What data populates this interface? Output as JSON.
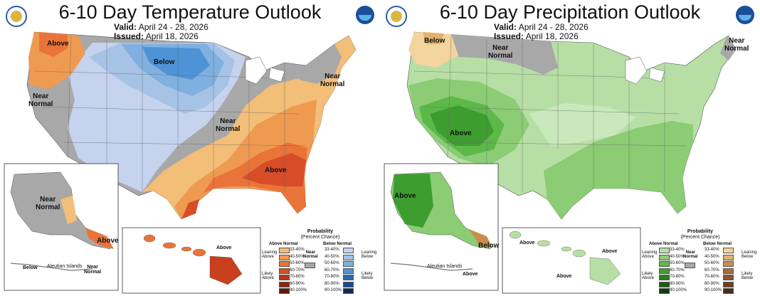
{
  "temperature": {
    "title": "6-10 Day Temperature Outlook",
    "valid_label": "Valid:",
    "valid_value": "April 24 - 28, 2026",
    "issued_label": "Issued:",
    "issued_value": "April 18, 2026",
    "labels": {
      "above_nw": "Above",
      "below_n": "Below",
      "near_ne_1": "Near",
      "near_ne_2": "Normal",
      "near_w_1": "Near",
      "near_w_2": "Normal",
      "near_c_1": "Near",
      "near_c_2": "Normal",
      "above_se": "Above",
      "ak_near_1": "Near",
      "ak_near_2": "Normal",
      "ak_above": "Above",
      "ak_below": "Below",
      "aleutian": "Aleutian Islands",
      "ak_near_s_1": "Near",
      "ak_near_s_2": "Normal",
      "hi_above": "Above"
    },
    "legend": {
      "title": "Probability",
      "subtitle": "(Percent Chance)",
      "left_header": "Above Normal",
      "right_header": "Below Normal",
      "near_1": "Near",
      "near_2": "Normal",
      "left_top_1": "Leaning",
      "left_top_2": "Above",
      "left_bot_1": "Likely",
      "left_bot_2": "Above",
      "right_top_1": "Leaning",
      "right_top_2": "Below",
      "right_bot_1": "Likely",
      "right_bot_2": "Below",
      "ranges": [
        "33-40%",
        "40-50%",
        "50-60%",
        "60-70%",
        "70-80%",
        "80-90%",
        "90-100%"
      ],
      "left_colors": [
        "#f3be77",
        "#ef9a51",
        "#e8743a",
        "#d84c28",
        "#b8341c",
        "#8b2810",
        "#5e1a08"
      ],
      "right_colors": [
        "#c5d3ee",
        "#a6c3e6",
        "#7fb0df",
        "#4e93d5",
        "#2a67b6",
        "#1b4a8e",
        "#0f2b5a"
      ],
      "near_color": "#a8a8a8"
    }
  },
  "precipitation": {
    "title": "6-10 Day Precipitation Outlook",
    "valid_label": "Valid:",
    "valid_value": "April 24 - 28, 2026",
    "issued_label": "Issued:",
    "issued_value": "April 18, 2026",
    "labels": {
      "below_nw": "Below",
      "near_n_1": "Near",
      "near_n_2": "Normal",
      "near_ne_1": "Near",
      "near_ne_2": "Normal",
      "above_sw": "Above",
      "ak_above": "Above",
      "ak_below": "Below",
      "aleutian": "Aleutian Islands",
      "ak_above_s": "Above",
      "hi_above_1": "Above",
      "hi_above_2": "Above",
      "hi_above_3": "Above"
    },
    "legend": {
      "title": "Probability",
      "subtitle": "(Percent Chance)",
      "left_header": "Above Normal",
      "right_header": "Below Normal",
      "near_1": "Near",
      "near_2": "Normal",
      "left_top_1": "Leaning",
      "left_top_2": "Above",
      "left_bot_1": "Likely",
      "left_bot_2": "Above",
      "right_top_1": "Leaning",
      "right_top_2": "Below",
      "right_bot_1": "Likely",
      "right_bot_2": "Below",
      "ranges": [
        "33-40%",
        "40-50%",
        "50-60%",
        "60-70%",
        "70-80%",
        "80-90%",
        "90-100%"
      ],
      "left_colors": [
        "#b7dfa5",
        "#8ccc74",
        "#5db84a",
        "#3d9e2f",
        "#2a7d1f",
        "#1b5c15",
        "#0f3d0b"
      ],
      "right_colors": [
        "#f2d49c",
        "#e2b26c",
        "#c98e4c",
        "#a76e38",
        "#8a5630",
        "#6b4126",
        "#4a2c1a"
      ],
      "near_color": "#a8a8a8"
    }
  }
}
